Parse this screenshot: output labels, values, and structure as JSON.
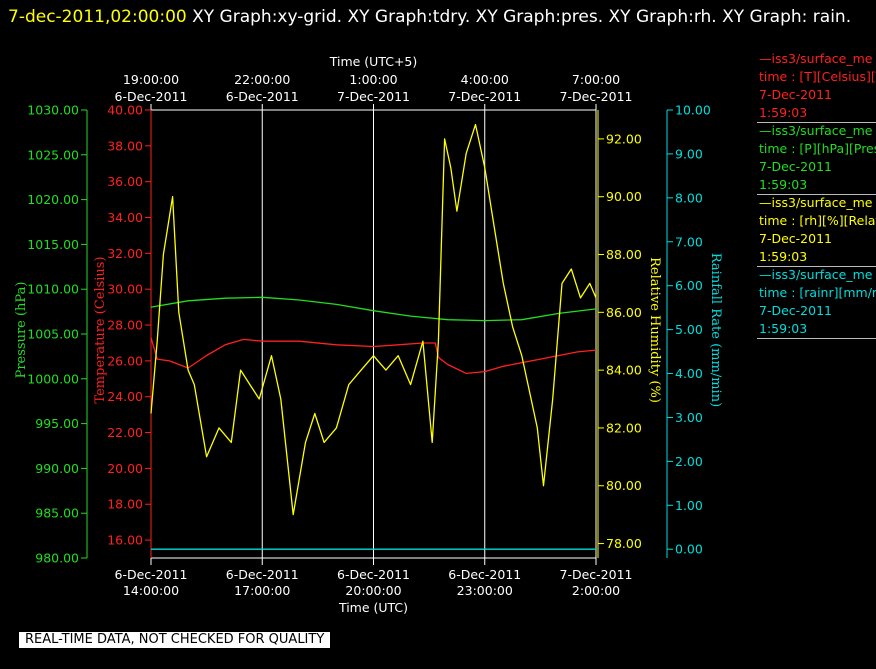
{
  "title": {
    "time": "7-dec-2011,02:00:00",
    "graphs": "XY Graph:xy-grid.  XY Graph:tdry.  XY Graph:pres.  XY Graph:rh.  XY Graph: rain."
  },
  "colors": {
    "temperature": "#ff2020",
    "pressure": "#22dd22",
    "humidity": "#ffff00",
    "rain": "#00dddd",
    "axis": "#ffffff",
    "grid": "#ffffff"
  },
  "banner": "REAL-TIME DATA, NOT CHECKED FOR QUALITY",
  "legend": [
    {
      "color": "#ff2020",
      "lines": [
        "—iss3/surface_me",
        "time : [T][Celsius][T",
        "7-Dec-2011",
        "1:59:03"
      ]
    },
    {
      "color": "#22dd22",
      "lines": [
        "—iss3/surface_me",
        "time : [P][hPa][Press",
        "7-Dec-2011",
        "1:59:03"
      ]
    },
    {
      "color": "#ffff00",
      "lines": [
        "—iss3/surface_me",
        "time : [rh][%][Relati",
        "7-Dec-2011",
        "1:59:03"
      ]
    },
    {
      "color": "#00dddd",
      "lines": [
        "—iss3/surface_me",
        "time : [rainr][mm/mi",
        "7-Dec-2011",
        "1:59:03"
      ]
    }
  ],
  "chart_data": {
    "type": "line",
    "x_axis_bottom": {
      "label": "Time (UTC)",
      "range": [
        "2011-12-06 14:00",
        "2011-12-07 02:00"
      ],
      "ticks": [
        {
          "x": "2011-12-06 14:00",
          "line1": "6-Dec-2011",
          "line2": "14:00:00"
        },
        {
          "x": "2011-12-06 17:00",
          "line1": "6-Dec-2011",
          "line2": "17:00:00"
        },
        {
          "x": "2011-12-06 20:00",
          "line1": "6-Dec-2011",
          "line2": "20:00:00"
        },
        {
          "x": "2011-12-06 23:00",
          "line1": "6-Dec-2011",
          "line2": "23:00:00"
        },
        {
          "x": "2011-12-07 02:00",
          "line1": "7-Dec-2011",
          "line2": "2:00:00"
        }
      ]
    },
    "x_axis_top": {
      "label": "Time (UTC+5)",
      "ticks": [
        {
          "x": "2011-12-06 14:00",
          "line1": "19:00:00",
          "line2": "6-Dec-2011"
        },
        {
          "x": "2011-12-06 17:00",
          "line1": "22:00:00",
          "line2": "6-Dec-2011"
        },
        {
          "x": "2011-12-06 20:00",
          "line1": "1:00:00",
          "line2": "7-Dec-2011"
        },
        {
          "x": "2011-12-06 23:00",
          "line1": "4:00:00",
          "line2": "7-Dec-2011"
        },
        {
          "x": "2011-12-07 02:00",
          "line1": "7:00:00",
          "line2": "7-Dec-2011"
        }
      ]
    },
    "grid": true,
    "y_axes": [
      {
        "key": "pressure",
        "label": "Pressure (hPa)",
        "range": [
          980,
          1030
        ],
        "ticks": [
          "980.00",
          "985.00",
          "990.00",
          "995.00",
          "1000.00",
          "1005.00",
          "1010.00",
          "1015.00",
          "1020.00",
          "1025.00",
          "1030.00"
        ]
      },
      {
        "key": "temperature",
        "label": "Temperature (Celsius)",
        "range": [
          15,
          40
        ],
        "ticks": [
          "16.00",
          "18.00",
          "20.00",
          "22.00",
          "24.00",
          "26.00",
          "28.00",
          "30.00",
          "32.00",
          "34.00",
          "36.00",
          "38.00",
          "40.00"
        ]
      },
      {
        "key": "humidity",
        "label": "Relative Humidity (%)",
        "range": [
          77.5,
          93
        ],
        "ticks": [
          "78.00",
          "80.00",
          "82.00",
          "84.00",
          "86.00",
          "88.00",
          "90.00",
          "92.00"
        ]
      },
      {
        "key": "rain",
        "label": "Rainfall Rate (mm/min)",
        "range": [
          -0.2,
          10
        ],
        "ticks": [
          "0.00",
          "1.00",
          "2.00",
          "3.00",
          "4.00",
          "5.00",
          "6.00",
          "7.00",
          "8.00",
          "9.00",
          "10.00"
        ]
      }
    ],
    "series": [
      {
        "key": "temperature",
        "x": [
          "2011-12-06 14:00",
          "2011-12-06 14:10",
          "2011-12-06 14:30",
          "2011-12-06 15:00",
          "2011-12-06 15:30",
          "2011-12-06 16:00",
          "2011-12-06 16:30",
          "2011-12-06 17:00",
          "2011-12-06 18:00",
          "2011-12-06 19:00",
          "2011-12-06 20:00",
          "2011-12-06 20:40",
          "2011-12-06 21:20",
          "2011-12-06 21:40",
          "2011-12-06 21:45",
          "2011-12-06 22:00",
          "2011-12-06 22:30",
          "2011-12-06 23:00",
          "2011-12-06 23:30",
          "2011-12-07 00:00",
          "2011-12-07 00:30",
          "2011-12-07 01:00",
          "2011-12-07 01:30",
          "2011-12-07 02:00"
        ],
        "y": [
          27.3,
          26.1,
          26.0,
          25.6,
          26.3,
          26.9,
          27.2,
          27.1,
          27.1,
          26.9,
          26.8,
          26.9,
          27.0,
          27.0,
          26.2,
          25.8,
          25.3,
          25.4,
          25.7,
          25.9,
          26.1,
          26.3,
          26.5,
          26.6
        ]
      },
      {
        "key": "pressure",
        "x": [
          "2011-12-06 14:00",
          "2011-12-06 15:00",
          "2011-12-06 16:00",
          "2011-12-06 17:00",
          "2011-12-06 18:00",
          "2011-12-06 19:00",
          "2011-12-06 20:00",
          "2011-12-06 21:00",
          "2011-12-06 22:00",
          "2011-12-06 23:00",
          "2011-12-07 00:00",
          "2011-12-07 01:00",
          "2011-12-07 02:00"
        ],
        "y": [
          1008.0,
          1008.7,
          1009.0,
          1009.1,
          1008.8,
          1008.3,
          1007.6,
          1007.0,
          1006.6,
          1006.5,
          1006.6,
          1007.3,
          1007.8
        ]
      },
      {
        "key": "humidity",
        "x": [
          "2011-12-06 14:00",
          "2011-12-06 14:10",
          "2011-12-06 14:20",
          "2011-12-06 14:35",
          "2011-12-06 14:45",
          "2011-12-06 15:00",
          "2011-12-06 15:10",
          "2011-12-06 15:30",
          "2011-12-06 15:50",
          "2011-12-06 16:10",
          "2011-12-06 16:25",
          "2011-12-06 16:40",
          "2011-12-06 16:55",
          "2011-12-06 17:15",
          "2011-12-06 17:30",
          "2011-12-06 17:50",
          "2011-12-06 18:10",
          "2011-12-06 18:25",
          "2011-12-06 18:40",
          "2011-12-06 19:00",
          "2011-12-06 19:20",
          "2011-12-06 19:40",
          "2011-12-06 20:00",
          "2011-12-06 20:20",
          "2011-12-06 20:40",
          "2011-12-06 21:00",
          "2011-12-06 21:20",
          "2011-12-06 21:35",
          "2011-12-06 21:45",
          "2011-12-06 21:55",
          "2011-12-06 22:05",
          "2011-12-06 22:15",
          "2011-12-06 22:30",
          "2011-12-06 22:45",
          "2011-12-06 23:00",
          "2011-12-06 23:15",
          "2011-12-06 23:30",
          "2011-12-06 23:45",
          "2011-12-07 00:00",
          "2011-12-07 00:15",
          "2011-12-07 00:25",
          "2011-12-07 00:35",
          "2011-12-07 00:50",
          "2011-12-07 01:05",
          "2011-12-07 01:20",
          "2011-12-07 01:35",
          "2011-12-07 01:50",
          "2011-12-07 02:00"
        ],
        "y": [
          82.5,
          85.0,
          88.0,
          90.0,
          86.0,
          84.0,
          83.5,
          81.0,
          82.0,
          81.5,
          84.0,
          83.5,
          83.0,
          84.5,
          83.0,
          79.0,
          81.5,
          82.5,
          81.5,
          82.0,
          83.5,
          84.0,
          84.5,
          84.0,
          84.5,
          83.5,
          85.0,
          81.5,
          85.0,
          92.0,
          91.0,
          89.5,
          91.5,
          92.5,
          91.0,
          89.0,
          87.0,
          85.5,
          84.5,
          83.0,
          82.0,
          80.0,
          83.0,
          87.0,
          87.5,
          86.5,
          87.0,
          86.5
        ]
      },
      {
        "key": "rain",
        "x": [
          "2011-12-06 14:00",
          "2011-12-07 02:00"
        ],
        "y": [
          0.0,
          0.0
        ]
      }
    ]
  }
}
